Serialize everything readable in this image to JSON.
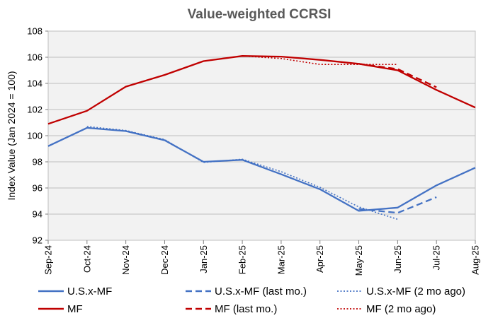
{
  "chart_data": {
    "type": "line",
    "title": "Value-weighted  CCRSI",
    "xlabel": "",
    "ylabel": "Index  Value (Jan 2024 = 100)",
    "ylim": [
      92,
      108
    ],
    "yticks": [
      92,
      94,
      96,
      98,
      100,
      102,
      104,
      106,
      108
    ],
    "grid": true,
    "legend": "bottom",
    "categories": [
      "Sep-24",
      "Oct-24",
      "Nov-24",
      "Dec-24",
      "Jan-25",
      "Feb-25",
      "Mar-25",
      "Apr-25",
      "May-25",
      "Jun-25",
      "Jul-25",
      "Aug-25"
    ],
    "series": [
      {
        "name": "U.S.x-MF",
        "color": "#4472C4",
        "dash": "solid",
        "values": [
          99.2,
          100.6,
          100.35,
          99.65,
          98.0,
          98.15,
          97.05,
          95.9,
          94.25,
          94.5,
          96.2,
          97.55
        ]
      },
      {
        "name": "U.S.x-MF (last mo.)",
        "color": "#4472C4",
        "dash": "dashed",
        "values": [
          null,
          null,
          null,
          null,
          null,
          null,
          null,
          null,
          94.4,
          94.1,
          95.3,
          null
        ]
      },
      {
        "name": "U.S.x-MF (2 mo ago)",
        "color": "#4472C4",
        "dash": "dotted",
        "values": [
          null,
          100.7,
          100.4,
          99.7,
          97.95,
          98.2,
          97.25,
          96.05,
          94.55,
          93.6,
          null,
          null
        ]
      },
      {
        "name": "MF",
        "color": "#C00000",
        "dash": "solid",
        "values": [
          100.9,
          101.9,
          103.75,
          104.65,
          105.7,
          106.1,
          106.05,
          105.8,
          105.5,
          105.0,
          103.5,
          102.15
        ]
      },
      {
        "name": "MF (last mo.)",
        "color": "#C00000",
        "dash": "dashed",
        "values": [
          null,
          null,
          null,
          null,
          null,
          null,
          null,
          null,
          105.5,
          105.1,
          103.7,
          null
        ]
      },
      {
        "name": "MF (2 mo ago)",
        "color": "#C00000",
        "dash": "dotted",
        "values": [
          null,
          null,
          null,
          null,
          null,
          106.1,
          105.9,
          105.45,
          105.45,
          105.45,
          null,
          null
        ]
      }
    ]
  }
}
